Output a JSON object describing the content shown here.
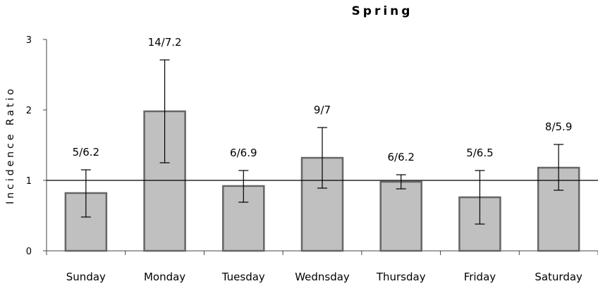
{
  "chart_data": {
    "type": "bar",
    "title": "Spring",
    "xlabel": "",
    "ylabel": "Incidence Ratio",
    "ylim": [
      0,
      3
    ],
    "yticks": [
      "0",
      "1",
      "2",
      "3"
    ],
    "reference_line": 1,
    "categories": [
      "Sunday",
      "Monday",
      "Tuesday",
      "Wednsday",
      "Thursday",
      "Friday",
      "Saturday"
    ],
    "values": [
      0.82,
      1.98,
      0.92,
      1.32,
      0.98,
      0.76,
      1.18
    ],
    "error_low": [
      0.48,
      1.25,
      0.69,
      0.89,
      0.88,
      0.38,
      0.86
    ],
    "error_high": [
      1.15,
      2.71,
      1.14,
      1.75,
      1.08,
      1.14,
      1.51
    ],
    "data_labels": [
      "5/6.2",
      "14/7.2",
      "6/6.9",
      "9/7",
      "6/6.2",
      "5/6.5",
      "8/5.9"
    ],
    "grid": false,
    "colors": {
      "bar_fill": "#c0c0c0",
      "bar_stroke": "#666666"
    }
  }
}
